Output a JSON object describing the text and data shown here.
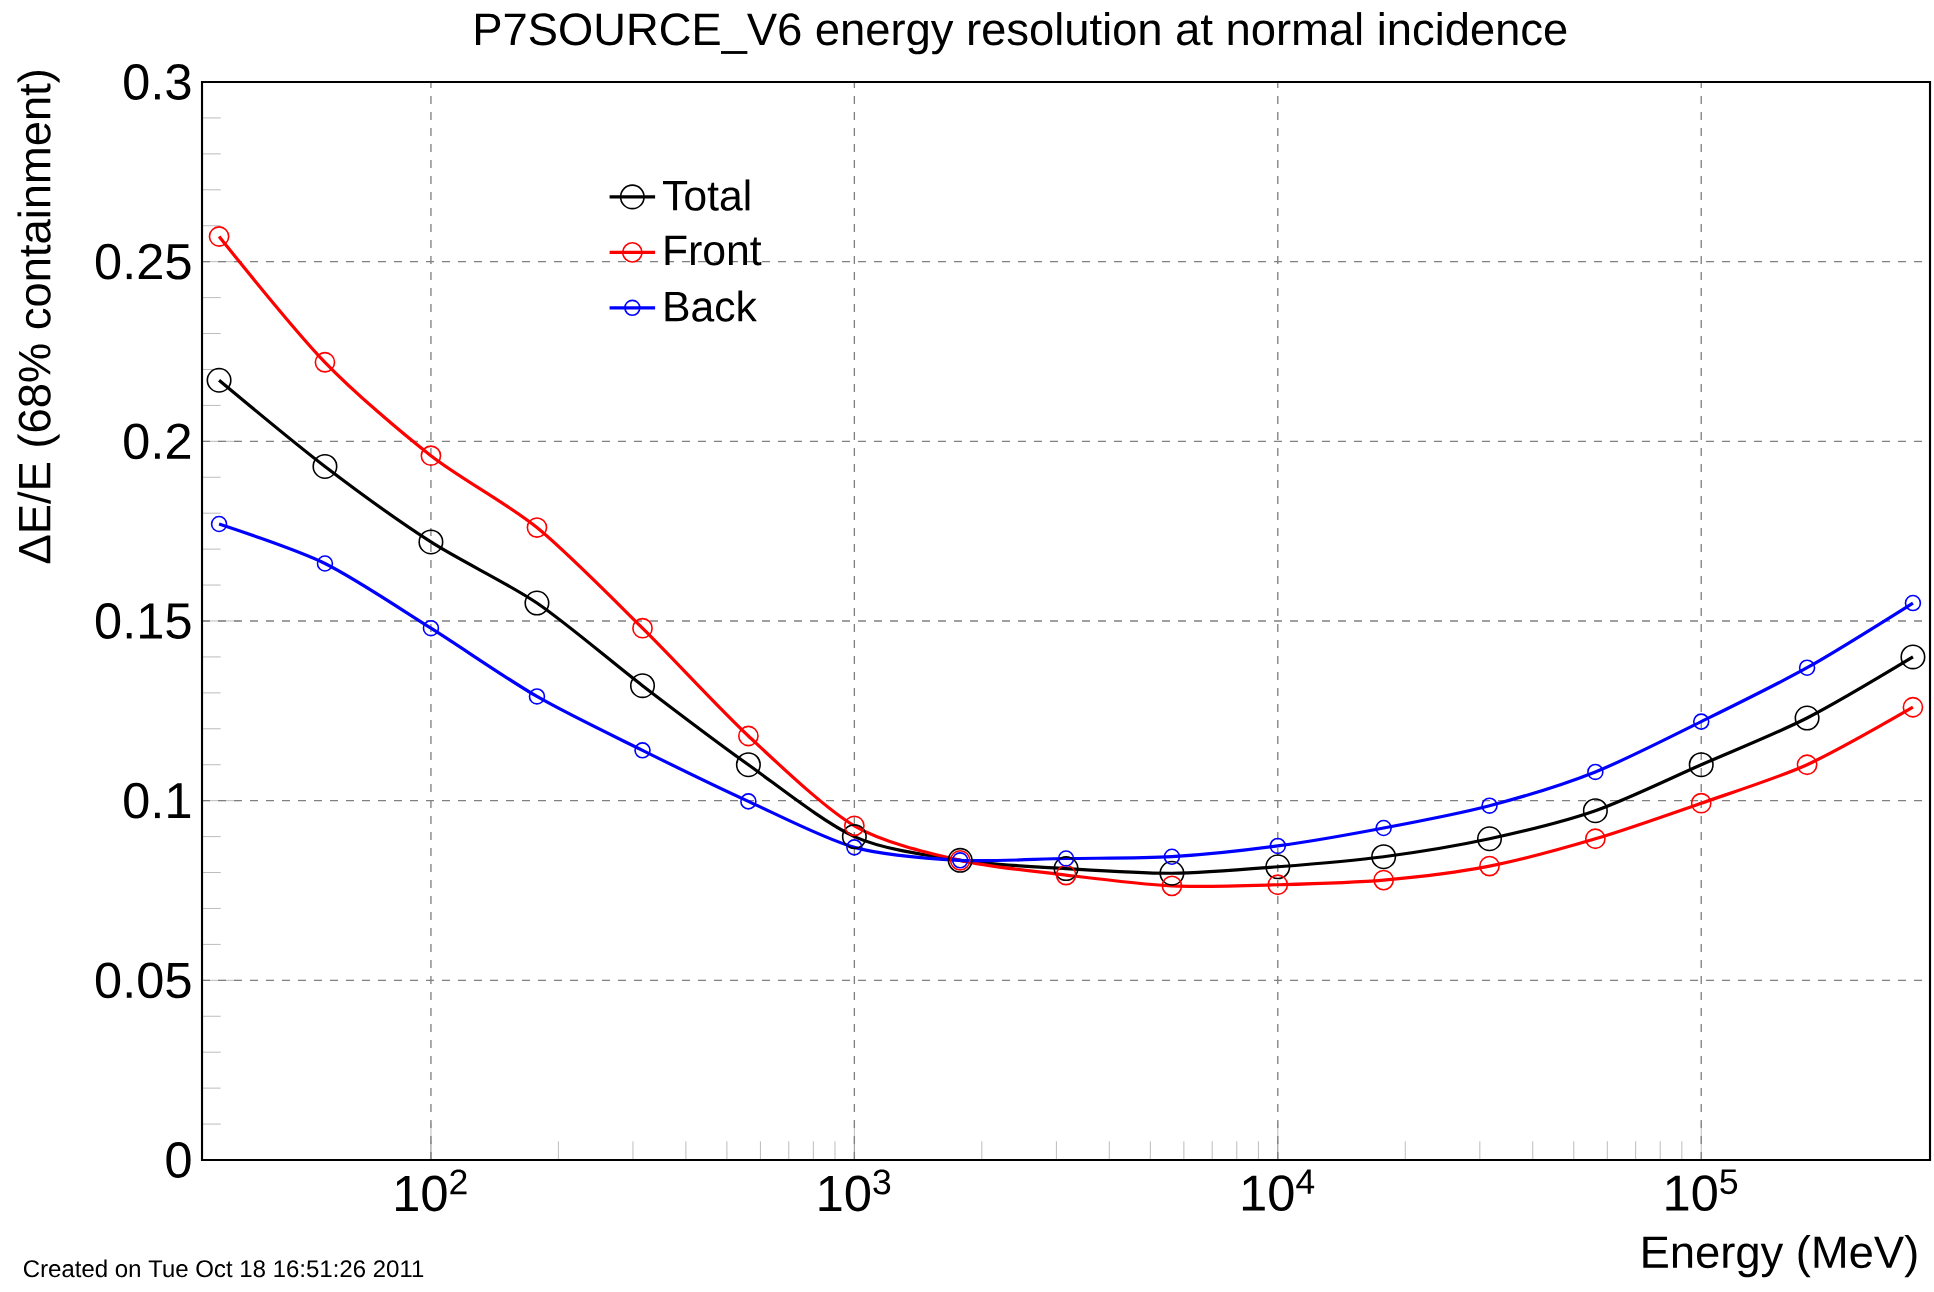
{
  "chart_data": {
    "type": "line",
    "title": "P7SOURCE_V6 energy resolution at normal incidence",
    "xlabel": "Energy (MeV)",
    "ylabel": "ΔE/E (68% containment)",
    "annotations": [
      "Created on Tue Oct 18 16:51:26 2011"
    ],
    "x": [
      31.6,
      56.2,
      100,
      178,
      316,
      562,
      1000,
      1778,
      3162,
      5623,
      10000,
      17783,
      31623,
      56234,
      100000,
      177828,
      316228
    ],
    "series": [
      {
        "name": "Total",
        "color": "#000000",
        "values": [
          0.217,
          0.193,
          0.172,
          0.155,
          0.132,
          0.11,
          0.09,
          0.0834,
          0.0811,
          0.0798,
          0.0816,
          0.0844,
          0.0894,
          0.0972,
          0.11,
          0.123,
          0.14
        ]
      },
      {
        "name": "Front",
        "color": "#ff0000",
        "values": [
          0.257,
          0.222,
          0.196,
          0.176,
          0.148,
          0.118,
          0.093,
          0.0834,
          0.0793,
          0.0763,
          0.0766,
          0.0779,
          0.0818,
          0.0894,
          0.0993,
          0.11,
          0.126
        ]
      },
      {
        "name": "Back",
        "color": "#0000ff",
        "values": [
          0.177,
          0.166,
          0.148,
          0.129,
          0.114,
          0.0998,
          0.087,
          0.0834,
          0.0839,
          0.0844,
          0.0874,
          0.0924,
          0.0986,
          0.108,
          0.122,
          0.137,
          0.155
        ]
      }
    ],
    "log": "x",
    "xlim": [
      28.8,
      347000
    ],
    "xticks": [
      {
        "value": 100,
        "label": "10$^{2}$"
      },
      {
        "value": 1000,
        "label": "10$^{3}$"
      },
      {
        "value": 10000,
        "label": "10$^{4}$"
      },
      {
        "value": 100000,
        "label": "10$^{5}$"
      }
    ],
    "ylim": [
      0,
      0.3
    ],
    "yticks": [
      0,
      0.05,
      0.1,
      0.15,
      0.2,
      0.25,
      0.3
    ],
    "grid": true,
    "legend": "top left",
    "marker": "circle",
    "line_style": "solid"
  }
}
